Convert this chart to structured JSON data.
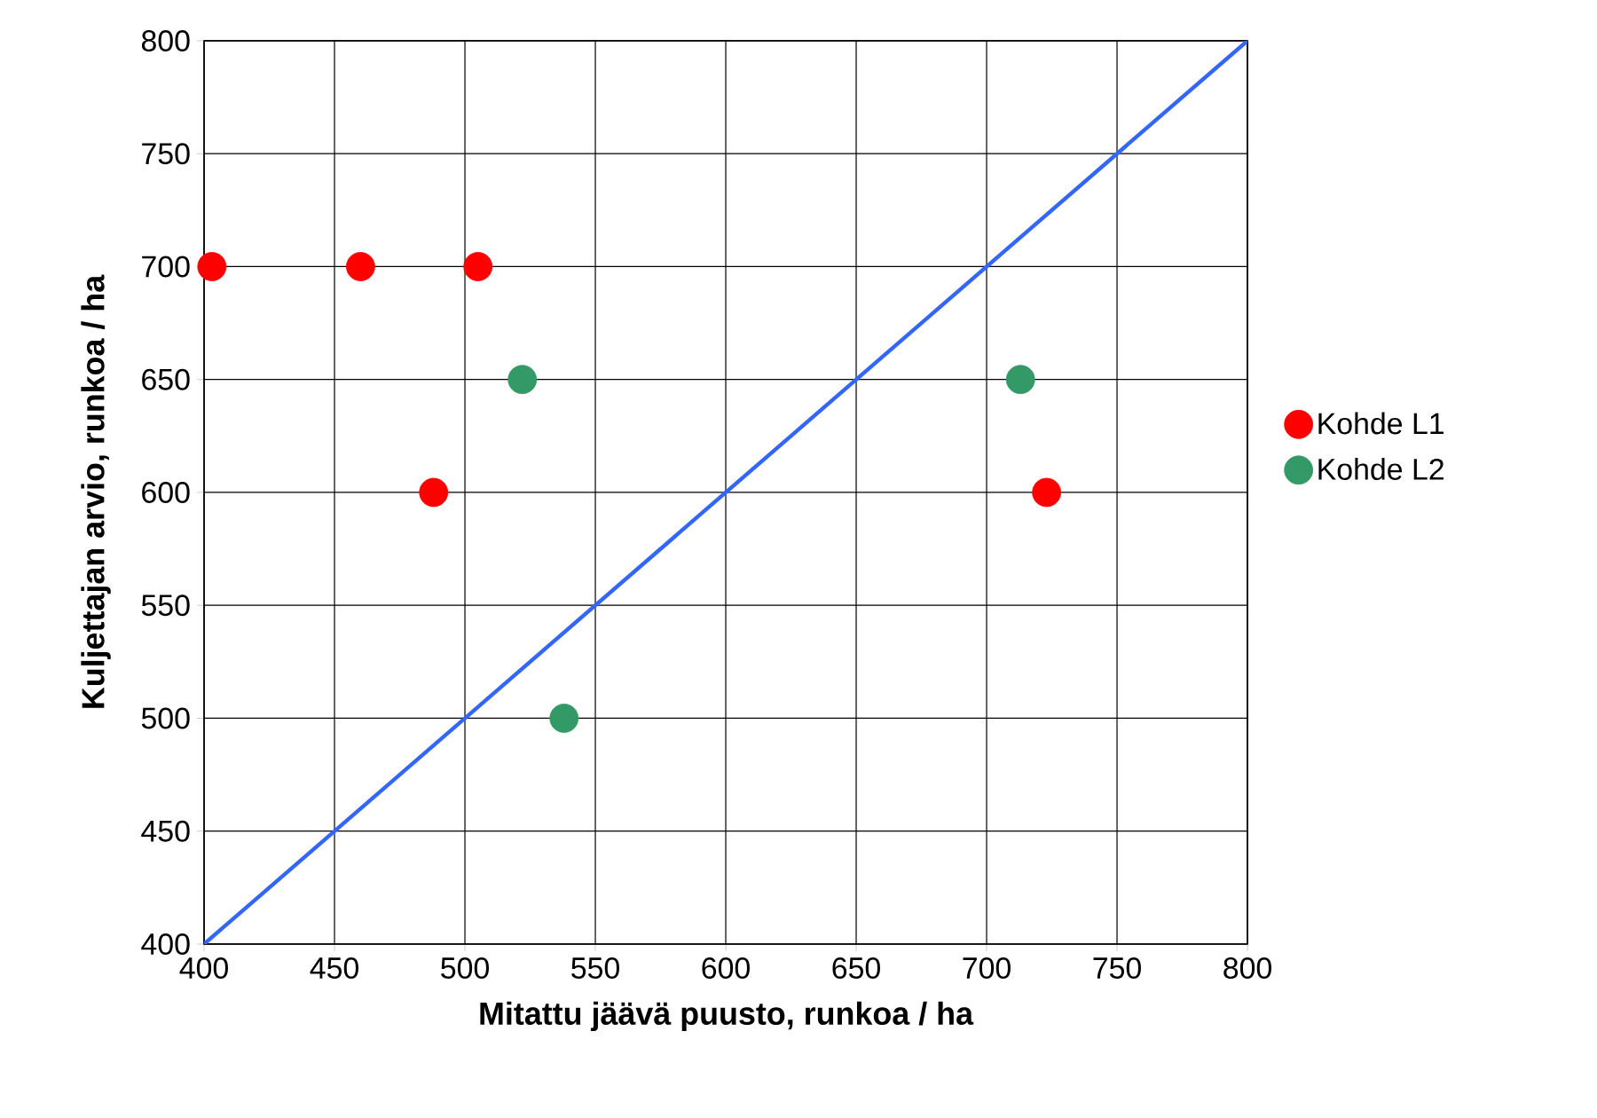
{
  "chart_data": {
    "type": "scatter",
    "xlabel": "Mitattu jäävä puusto, runkoa / ha",
    "ylabel": "Kuljettajan arvio, runkoa / ha",
    "xlim": [
      400,
      800
    ],
    "ylim": [
      400,
      800
    ],
    "xticks": [
      400,
      450,
      500,
      550,
      600,
      650,
      700,
      750,
      800
    ],
    "yticks": [
      400,
      450,
      500,
      550,
      600,
      650,
      700,
      750,
      800
    ],
    "grid": true,
    "legend": "right",
    "series": [
      {
        "name": "Kohde L1",
        "marker": "circle",
        "color": "#ff0000",
        "x": [
          403,
          460,
          505,
          488,
          723
        ],
        "values": [
          700,
          700,
          700,
          600,
          600
        ]
      },
      {
        "name": "Kohde L2",
        "marker": "circle",
        "color": "#339966",
        "x": [
          522,
          538,
          713
        ],
        "values": [
          650,
          500,
          650
        ]
      },
      {
        "type": "line",
        "marker": "none",
        "color": "#3366ff",
        "x": [
          400,
          800
        ],
        "values": [
          400,
          800
        ]
      }
    ]
  }
}
